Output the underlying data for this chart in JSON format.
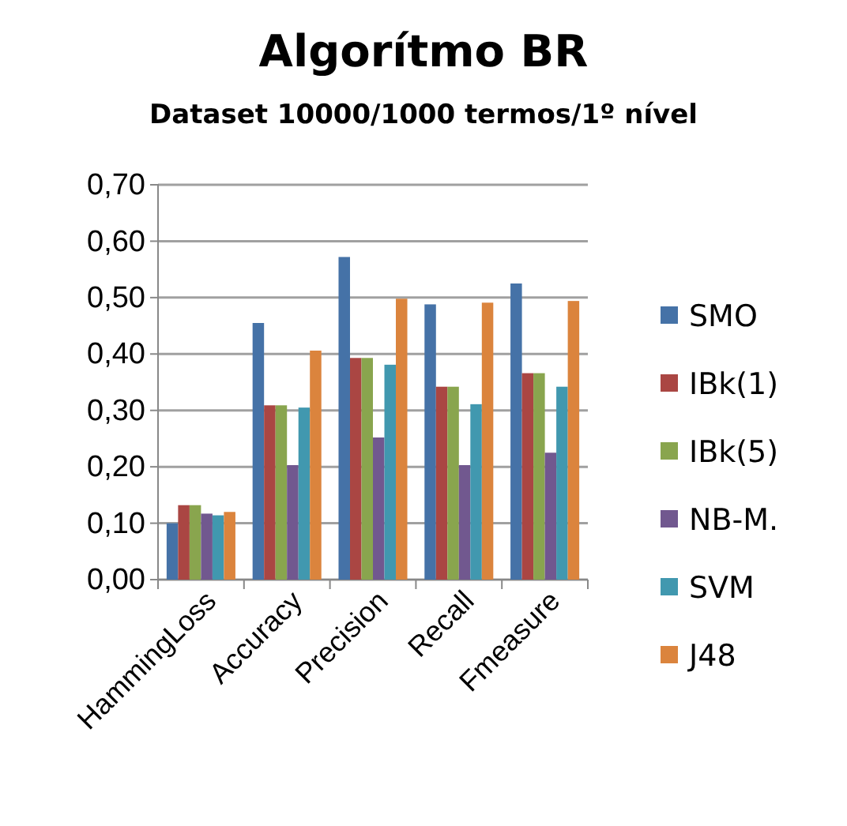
{
  "chart_data": {
    "type": "bar",
    "title": "Algorítmo BR",
    "subtitle": "Dataset 10000/1000 termos/1º nível",
    "categories": [
      "HammingLoss",
      "Accuracy",
      "Precision",
      "Recall",
      "Fmeasure"
    ],
    "series": [
      {
        "name": "SMO",
        "color": "#4572a7",
        "values": [
          0.1,
          0.455,
          0.572,
          0.488,
          0.525
        ]
      },
      {
        "name": "IBk(1)",
        "color": "#aa4643",
        "values": [
          0.132,
          0.309,
          0.393,
          0.342,
          0.366
        ]
      },
      {
        "name": "IBk(5)",
        "color": "#89a54e",
        "values": [
          0.132,
          0.309,
          0.393,
          0.342,
          0.366
        ]
      },
      {
        "name": "NB-M.",
        "color": "#71588f",
        "values": [
          0.117,
          0.203,
          0.252,
          0.203,
          0.225
        ]
      },
      {
        "name": "SVM",
        "color": "#4198af",
        "values": [
          0.114,
          0.305,
          0.381,
          0.311,
          0.342
        ]
      },
      {
        "name": "J48",
        "color": "#db843d",
        "values": [
          0.12,
          0.406,
          0.498,
          0.491,
          0.494
        ]
      }
    ],
    "ylim": [
      0,
      0.7
    ],
    "yticks": [
      {
        "value": 0,
        "label": "0,00"
      },
      {
        "value": 0.1,
        "label": "0,10"
      },
      {
        "value": 0.2,
        "label": "0,20"
      },
      {
        "value": 0.3,
        "label": "0,30"
      },
      {
        "value": 0.4,
        "label": "0,40"
      },
      {
        "value": 0.5,
        "label": "0,50"
      },
      {
        "value": 0.6,
        "label": "0,60"
      },
      {
        "value": 0.7,
        "label": "0,70"
      }
    ],
    "grid": "y",
    "legend": "right"
  }
}
